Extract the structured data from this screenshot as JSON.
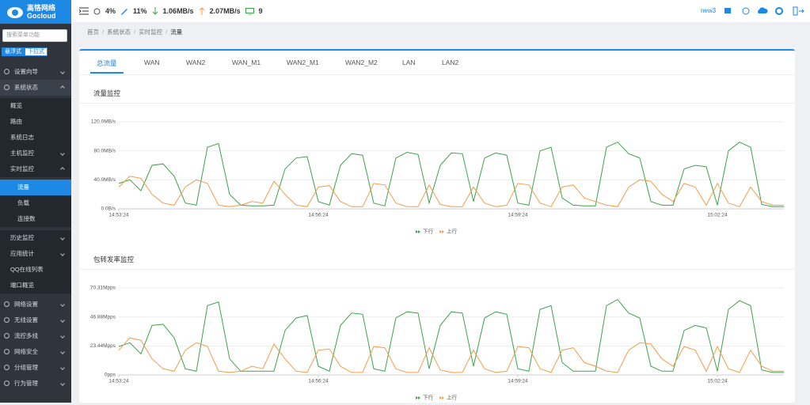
{
  "logo": {
    "cn": "高恪网络",
    "en": "Gocloud"
  },
  "header": {
    "cpu": "4%",
    "mem": "11%",
    "down": "1.06MB/s",
    "up": "2.07MB/s",
    "hosts": "9",
    "user": "new3"
  },
  "sidebar": {
    "search_placeholder": "搜索菜单功能",
    "modes": [
      "悬浮式",
      "下拉式"
    ],
    "items": [
      {
        "label": "设置向导",
        "level": 1
      },
      {
        "label": "系统状态",
        "level": 1,
        "expanded": true
      },
      {
        "label": "概览",
        "level": 2
      },
      {
        "label": "路由",
        "level": 2
      },
      {
        "label": "系统日志",
        "level": 2
      },
      {
        "label": "主机监控",
        "level": 2
      },
      {
        "label": "实时监控",
        "level": 2,
        "expanded": true
      },
      {
        "label": "流量",
        "level": 3,
        "active": true
      },
      {
        "label": "负载",
        "level": 3
      },
      {
        "label": "连接数",
        "level": 3
      },
      {
        "label": "历史监控",
        "level": 2
      },
      {
        "label": "应用统计",
        "level": 2
      },
      {
        "label": "QQ在线列表",
        "level": 2
      },
      {
        "label": "端口概览",
        "level": 2
      },
      {
        "label": "网络设置",
        "level": 1
      },
      {
        "label": "无线设置",
        "level": 1
      },
      {
        "label": "流控多线",
        "level": 1
      },
      {
        "label": "网络安全",
        "level": 1
      },
      {
        "label": "分组管理",
        "level": 1
      },
      {
        "label": "行为管理",
        "level": 1
      }
    ]
  },
  "breadcrumb": [
    "首页",
    "系统状态",
    "实时监控",
    "流量"
  ],
  "tabs": [
    "总流量",
    "WAN",
    "WAN2",
    "WAN_M1",
    "WAN2_M1",
    "WAN2_M2",
    "LAN",
    "LAN2"
  ],
  "chart_data": [
    {
      "type": "line",
      "title": "流量监控",
      "categories": [
        "14:53:24",
        null,
        null,
        null,
        null,
        null,
        null,
        null,
        null,
        null,
        null,
        null,
        null,
        null,
        null,
        null,
        null,
        null,
        "14:56:24",
        null,
        null,
        null,
        null,
        null,
        null,
        null,
        null,
        null,
        null,
        null,
        null,
        null,
        null,
        null,
        null,
        null,
        "14:59:24",
        null,
        null,
        null,
        null,
        null,
        null,
        null,
        null,
        null,
        null,
        null,
        null,
        null,
        null,
        null,
        null,
        null,
        "15:02:24",
        null,
        null,
        null,
        null,
        null,
        null
      ],
      "ylim": [
        0,
        120
      ],
      "yticks": [
        {
          "value": 0,
          "label": "0.0B/s"
        },
        {
          "value": 40,
          "label": "40.0MB/s"
        },
        {
          "value": 80,
          "label": "80.0MB/s"
        },
        {
          "value": 120,
          "label": "120.0MB/s"
        }
      ],
      "grid": true,
      "series": [
        {
          "name": "下行",
          "color": "#3da24a",
          "values": [
            35,
            40,
            25,
            60,
            62,
            45,
            8,
            5,
            85,
            90,
            20,
            5,
            4,
            4,
            5,
            55,
            70,
            72,
            10,
            5,
            60,
            76,
            74,
            8,
            4,
            70,
            78,
            75,
            8,
            60,
            77,
            76,
            10,
            70,
            77,
            74,
            8,
            5,
            80,
            85,
            15,
            5,
            4,
            4,
            85,
            92,
            76,
            70,
            10,
            5,
            5,
            55,
            60,
            58,
            5,
            80,
            92,
            85,
            6,
            3,
            3
          ]
        },
        {
          "name": "上行",
          "color": "#f39c4a",
          "values": [
            30,
            45,
            42,
            20,
            8,
            5,
            30,
            40,
            35,
            5,
            3,
            5,
            10,
            8,
            38,
            20,
            5,
            3,
            30,
            32,
            10,
            3,
            3,
            35,
            33,
            8,
            3,
            3,
            33,
            6,
            3,
            3,
            30,
            8,
            3,
            5,
            35,
            33,
            8,
            3,
            30,
            33,
            15,
            10,
            5,
            3,
            30,
            40,
            38,
            20,
            10,
            35,
            30,
            5,
            35,
            8,
            3,
            30,
            10,
            5,
            5
          ]
        }
      ]
    },
    {
      "type": "line",
      "title": "包转发率监控",
      "categories": [
        "14:53:24",
        null,
        null,
        null,
        null,
        null,
        null,
        null,
        null,
        null,
        null,
        null,
        null,
        null,
        null,
        null,
        null,
        null,
        "14:56:24",
        null,
        null,
        null,
        null,
        null,
        null,
        null,
        null,
        null,
        null,
        null,
        null,
        null,
        null,
        null,
        null,
        null,
        "14:59:24",
        null,
        null,
        null,
        null,
        null,
        null,
        null,
        null,
        null,
        null,
        null,
        null,
        null,
        null,
        null,
        null,
        null,
        "15:02:24",
        null,
        null,
        null,
        null,
        null,
        null
      ],
      "ylim": [
        0,
        70.31
      ],
      "yticks": [
        {
          "value": 0,
          "label": "0pps"
        },
        {
          "value": 23.44,
          "label": "23.44Mpps"
        },
        {
          "value": 46.88,
          "label": "46.88Mpps"
        },
        {
          "value": 70.31,
          "label": "70.31Mpps"
        }
      ],
      "grid": true,
      "series": [
        {
          "name": "下行",
          "color": "#3da24a",
          "values": [
            23,
            26,
            17,
            40,
            41,
            30,
            5,
            3,
            56,
            59,
            13,
            3,
            3,
            3,
            3,
            36,
            46,
            48,
            7,
            3,
            40,
            50,
            49,
            5,
            3,
            46,
            51,
            50,
            5,
            40,
            51,
            50,
            7,
            46,
            51,
            49,
            5,
            3,
            53,
            56,
            10,
            3,
            3,
            3,
            56,
            61,
            50,
            46,
            7,
            3,
            3,
            36,
            40,
            38,
            3,
            53,
            60,
            56,
            4,
            2,
            2
          ]
        },
        {
          "name": "上行",
          "color": "#f39c4a",
          "values": [
            20,
            30,
            28,
            13,
            5,
            3,
            20,
            26,
            23,
            3,
            2,
            3,
            7,
            5,
            25,
            13,
            3,
            2,
            20,
            21,
            7,
            2,
            2,
            23,
            22,
            5,
            2,
            2,
            22,
            4,
            2,
            2,
            20,
            5,
            2,
            3,
            23,
            22,
            5,
            2,
            20,
            22,
            10,
            7,
            3,
            2,
            20,
            26,
            25,
            13,
            7,
            23,
            20,
            3,
            23,
            5,
            2,
            20,
            7,
            3,
            3
          ]
        }
      ]
    }
  ]
}
